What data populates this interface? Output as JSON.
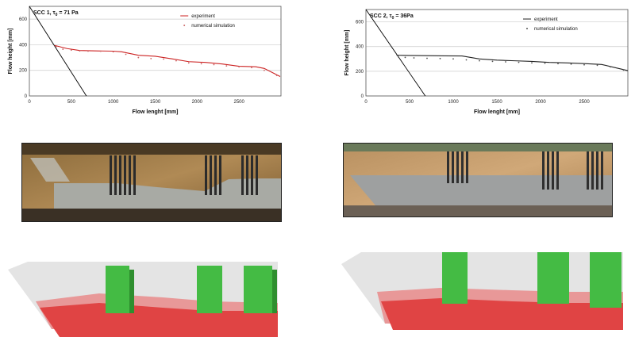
{
  "chart_data": [
    {
      "type": "line",
      "title_name": "SCC 1, τ",
      "title_sub": "0",
      "title_rest": " =  71 Pa",
      "xlabel": "Flow lenght [mm]",
      "ylabel": "Flow height [mm]",
      "xlim": [
        0,
        3000
      ],
      "ylim": [
        0,
        700
      ],
      "xticks": [
        0,
        500,
        1000,
        1500,
        2000,
        2500
      ],
      "yticks": [
        0,
        200,
        400,
        600
      ],
      "grid": true,
      "legend_position": "top-right",
      "accent_color": "#cc2222",
      "series": [
        {
          "name": "experiment",
          "style": "line",
          "x": [
            0,
            680
          ],
          "y": [
            700,
            0
          ],
          "color": "#000000",
          "label_hidden": true
        },
        {
          "name": "experiment",
          "style": "line",
          "x": [
            300,
            450,
            600,
            800,
            1000,
            1100,
            1300,
            1500,
            1700,
            1900,
            2100,
            2300,
            2500,
            2700,
            2800,
            2990
          ],
          "y": [
            395,
            370,
            355,
            352,
            350,
            345,
            318,
            310,
            290,
            268,
            262,
            250,
            232,
            228,
            215,
            152
          ],
          "color": "#cc2222"
        },
        {
          "name": "numerical simulation",
          "style": "markers",
          "x": [
            320,
            400,
            500,
            600,
            700,
            850,
            1000,
            1150,
            1300,
            1450,
            1600,
            1750,
            1900,
            2050,
            2200,
            2350,
            2500,
            2650,
            2800,
            2950
          ],
          "y": [
            385,
            365,
            358,
            352,
            350,
            349,
            345,
            325,
            300,
            292,
            288,
            275,
            258,
            252,
            245,
            235,
            228,
            222,
            200,
            160
          ],
          "color": "#cc6666"
        }
      ]
    },
    {
      "type": "line",
      "title_name": "SCC 2, τ",
      "title_sub": "0",
      "title_rest": " = 36Pa",
      "xlabel": "Flow lenght [mm]",
      "ylabel": "Flow height [mm]",
      "xlim": [
        0,
        3000
      ],
      "ylim": [
        0,
        700
      ],
      "xticks": [
        0,
        500,
        1000,
        1500,
        2000,
        2500
      ],
      "yticks": [
        0,
        200,
        400,
        600
      ],
      "grid": true,
      "legend_position": "top-right",
      "series": [
        {
          "name": "experiment",
          "style": "line",
          "x": [
            0,
            680
          ],
          "y": [
            700,
            0
          ],
          "color": "#000000",
          "label_hidden": true
        },
        {
          "name": "experiment",
          "style": "line",
          "x": [
            350,
            500,
            700,
            900,
            1100,
            1300,
            1500,
            1700,
            1900,
            2100,
            2300,
            2500,
            2700,
            2850,
            3000
          ],
          "y": [
            330,
            328,
            326,
            325,
            324,
            300,
            290,
            285,
            280,
            272,
            268,
            262,
            255,
            230,
            205
          ],
          "color": "#222222"
        },
        {
          "name": "numerical simulation",
          "style": "markers",
          "x": [
            370,
            450,
            550,
            700,
            850,
            1000,
            1150,
            1300,
            1450,
            1600,
            1750,
            1900,
            2050,
            2200,
            2350,
            2500,
            2650,
            2800,
            2950
          ],
          "y": [
            318,
            312,
            308,
            305,
            303,
            300,
            292,
            285,
            280,
            276,
            272,
            268,
            265,
            262,
            258,
            252,
            248,
            235,
            210
          ],
          "color": "#555555"
        }
      ]
    }
  ],
  "figures": {
    "photo_left": "experimental flow photo",
    "photo_right": "experimental flow photo",
    "sim_left": "3D numerical simulation render",
    "sim_right": "3D numerical simulation render"
  }
}
